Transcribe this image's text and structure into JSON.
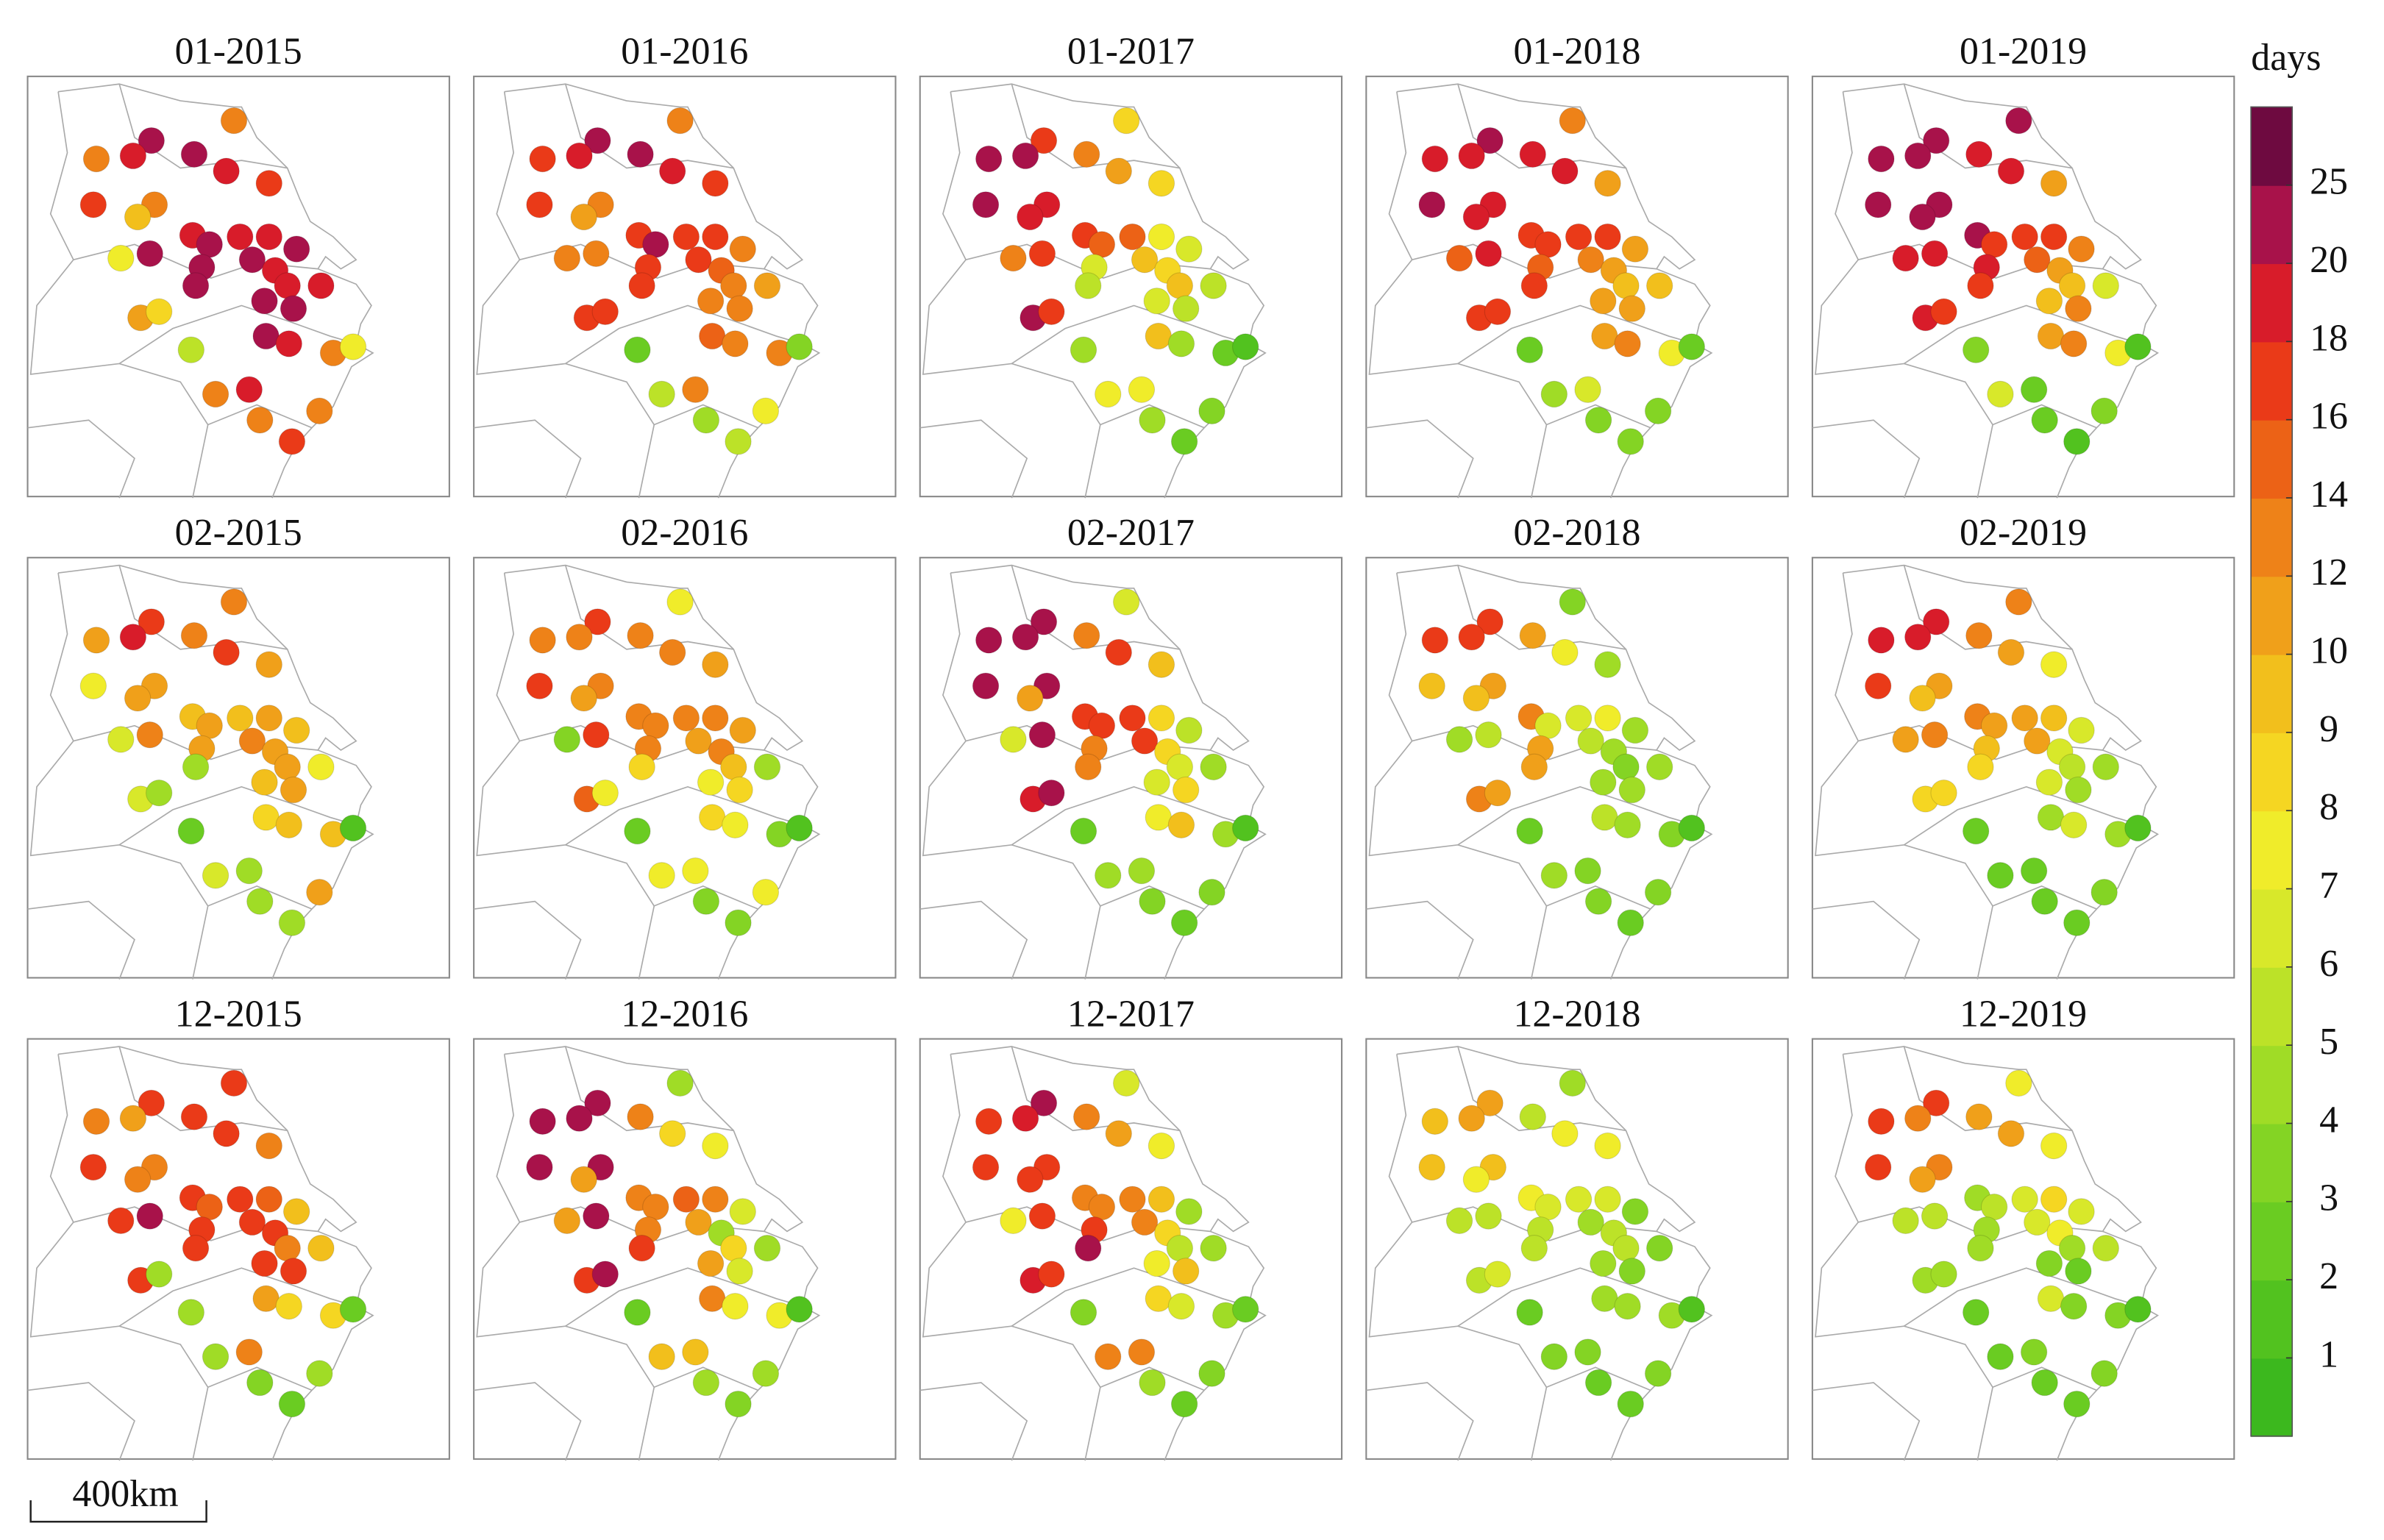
{
  "chart_data": {
    "type": "dot_map",
    "scale_bar": "400km",
    "colorbar": {
      "label": "days",
      "lim": [
        0,
        30
      ],
      "ticks": [
        1,
        2,
        3,
        4,
        5,
        6,
        7,
        8,
        9,
        10,
        12,
        14,
        16,
        18,
        20,
        25
      ],
      "colors": [
        "#3cb81e",
        "#52c21f",
        "#6acc22",
        "#84d424",
        "#a0dc26",
        "#bce228",
        "#d8e82a",
        "#f0ec2a",
        "#f5d622",
        "#f2bf1c",
        "#f0a01a",
        "#ee8218",
        "#ec6216",
        "#ea3a18",
        "#d81c2a",
        "#a8124a",
        "#6e0a40"
      ]
    },
    "panels": [
      {
        "title": "01-2015",
        "values": [
          13,
          22,
          19,
          21,
          13,
          18,
          12,
          17,
          17,
          9,
          19,
          7,
          21,
          22,
          18,
          19,
          21,
          21,
          22,
          20,
          19,
          19,
          18,
          11,
          8,
          20,
          22,
          20,
          19,
          5,
          13,
          7,
          13,
          19,
          13,
          13,
          17
        ]
      },
      {
        "title": "01-2016",
        "values": [
          13,
          22,
          19,
          20,
          17,
          18,
          13,
          17,
          17,
          10,
          17,
          12,
          13,
          22,
          16,
          17,
          12,
          16,
          17,
          16,
          14,
          13,
          11,
          17,
          17,
          13,
          12,
          14,
          13,
          2,
          12,
          3,
          5,
          13,
          4,
          7,
          5
        ]
      },
      {
        "title": "01-2017",
        "values": [
          8,
          17,
          22,
          12,
          22,
          10,
          18,
          22,
          8,
          19,
          17,
          12,
          17,
          15,
          14,
          7,
          6,
          6,
          5,
          9,
          8,
          9,
          5,
          22,
          17,
          6,
          5,
          9,
          4,
          4,
          2,
          1,
          7,
          7,
          4,
          3,
          2
        ]
      },
      {
        "title": "01-2018",
        "values": [
          13,
          20,
          19,
          18,
          19,
          18,
          18,
          20,
          10,
          19,
          16,
          14,
          18,
          16,
          16,
          16,
          10,
          14,
          16,
          12,
          11,
          9,
          9,
          16,
          16,
          10,
          11,
          11,
          12,
          2,
          7,
          2,
          4,
          6,
          3,
          3,
          3
        ]
      },
      {
        "title": "01-2019",
        "values": [
          22,
          22,
          22,
          18,
          22,
          18,
          22,
          20,
          11,
          22,
          20,
          19,
          18,
          17,
          16,
          16,
          12,
          18,
          17,
          14,
          10,
          9,
          6,
          18,
          17,
          9,
          12,
          10,
          13,
          3,
          7,
          1,
          6,
          2,
          2,
          3,
          1
        ]
      },
      {
        "title": "02-2015",
        "values": [
          13,
          17,
          18,
          12,
          11,
          17,
          11,
          7,
          10,
          10,
          9,
          6,
          13,
          10,
          9,
          11,
          9,
          11,
          4,
          12,
          11,
          10,
          7,
          6,
          4,
          9,
          10,
          8,
          9,
          2,
          9,
          1,
          6,
          4,
          4,
          10,
          4
        ]
      },
      {
        "title": "02-2016",
        "values": [
          7,
          17,
          13,
          12,
          12,
          12,
          12,
          17,
          10,
          10,
          13,
          3,
          17,
          13,
          13,
          12,
          10,
          12,
          8,
          10,
          13,
          9,
          4,
          14,
          7,
          7,
          8,
          8,
          7,
          2,
          3,
          1,
          7,
          7,
          3,
          7,
          3
        ]
      },
      {
        "title": "02-2017",
        "values": [
          6,
          22,
          22,
          12,
          22,
          17,
          22,
          22,
          9,
          10,
          17,
          6,
          22,
          16,
          17,
          8,
          5,
          12,
          12,
          17,
          8,
          6,
          4,
          19,
          22,
          6,
          8,
          7,
          9,
          2,
          4,
          1,
          4,
          4,
          3,
          3,
          2
        ]
      },
      {
        "title": "02-2018",
        "values": [
          3,
          17,
          17,
          11,
          17,
          7,
          10,
          9,
          4,
          9,
          12,
          4,
          5,
          6,
          6,
          7,
          4,
          10,
          11,
          5,
          4,
          3,
          4,
          12,
          11,
          4,
          4,
          5,
          4,
          2,
          3,
          1,
          4,
          3,
          3,
          3,
          2
        ]
      },
      {
        "title": "02-2019",
        "values": [
          12,
          18,
          18,
          12,
          18,
          11,
          10,
          17,
          7,
          9,
          12,
          10,
          12,
          11,
          10,
          9,
          6,
          9,
          8,
          10,
          6,
          5,
          4,
          8,
          8,
          6,
          4,
          4,
          6,
          2,
          4,
          1,
          2,
          2,
          2,
          3,
          2
        ]
      },
      {
        "title": "12-2015",
        "values": [
          16,
          17,
          10,
          17,
          13,
          17,
          12,
          17,
          13,
          12,
          17,
          17,
          20,
          14,
          17,
          14,
          9,
          17,
          17,
          17,
          17,
          12,
          9,
          17,
          4,
          17,
          17,
          11,
          8,
          4,
          8,
          2,
          4,
          13,
          3,
          4,
          2
        ]
      },
      {
        "title": "12-2016",
        "values": [
          4,
          22,
          22,
          12,
          22,
          8,
          22,
          22,
          7,
          10,
          12,
          10,
          22,
          12,
          15,
          12,
          6,
          12,
          17,
          10,
          4,
          8,
          4,
          17,
          22,
          11,
          6,
          12,
          7,
          2,
          7,
          1,
          9,
          9,
          4,
          4,
          3
        ]
      },
      {
        "title": "12-2017",
        "values": [
          6,
          20,
          18,
          12,
          17,
          10,
          17,
          17,
          7,
          17,
          12,
          7,
          17,
          12,
          12,
          9,
          4,
          17,
          20,
          13,
          8,
          5,
          4,
          18,
          17,
          7,
          9,
          8,
          6,
          3,
          4,
          2,
          12,
          12,
          4,
          3,
          2
        ]
      },
      {
        "title": "12-2018",
        "values": [
          4,
          11,
          11,
          5,
          9,
          7,
          9,
          9,
          7,
          7,
          7,
          5,
          5,
          6,
          6,
          6,
          3,
          5,
          5,
          4,
          5,
          5,
          3,
          5,
          6,
          4,
          3,
          4,
          4,
          2,
          4,
          1,
          3,
          3,
          2,
          3,
          2
        ]
      },
      {
        "title": "12-2019",
        "values": [
          7,
          16,
          13,
          10,
          17,
          11,
          13,
          17,
          7,
          10,
          4,
          5,
          5,
          5,
          6,
          8,
          6,
          4,
          4,
          6,
          7,
          4,
          5,
          4,
          4,
          3,
          2,
          6,
          3,
          2,
          3,
          1,
          2,
          3,
          2,
          3,
          2
        ]
      }
    ]
  }
}
